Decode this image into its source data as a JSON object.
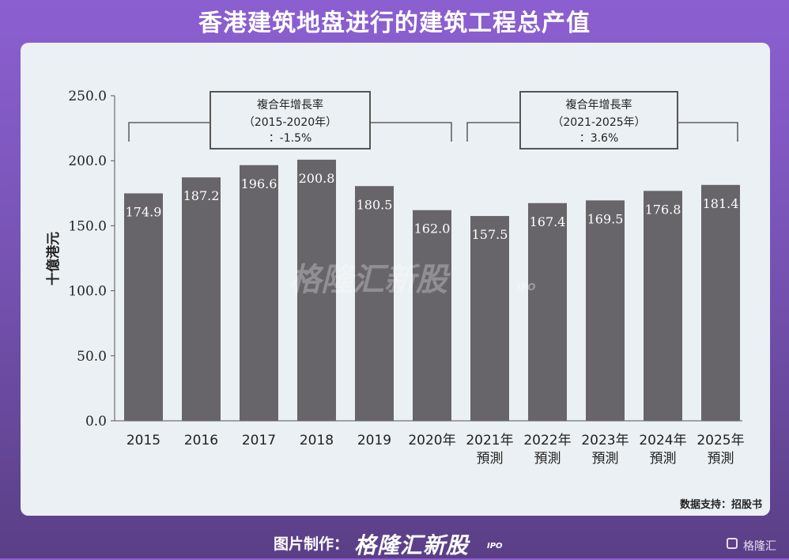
{
  "title": "香港建筑地盘进行的建筑工程总产值",
  "source": "数据支持：招股书",
  "watermark": {
    "brand": "格隆汇新股",
    "sub": "IPO"
  },
  "footer": {
    "label": "图片制作：",
    "brand": "格隆汇新股",
    "sub": "IPO",
    "corner_brand": "格隆汇"
  },
  "annotations": [
    {
      "line1": "複合年增長率",
      "line2": "（2015-2020年）",
      "line3": "：-1.5%"
    },
    {
      "line1": "複合年增長率",
      "line2": "（2021-2025年）",
      "line3": "：3.6%"
    }
  ],
  "chart_data": {
    "type": "bar",
    "categories": [
      [
        "2015"
      ],
      [
        "2016"
      ],
      [
        "2017"
      ],
      [
        "2018"
      ],
      [
        "2019"
      ],
      [
        "2020年"
      ],
      [
        "2021年",
        "預測"
      ],
      [
        "2022年",
        "預測"
      ],
      [
        "2023年",
        "預測"
      ],
      [
        "2024年",
        "預測"
      ],
      [
        "2025年",
        "預測"
      ]
    ],
    "values": [
      174.9,
      187.2,
      196.6,
      200.8,
      180.5,
      162.0,
      157.5,
      167.4,
      169.5,
      176.8,
      181.4
    ],
    "value_labels": [
      "174.9",
      "187.2",
      "196.6",
      "200.8",
      "180.5",
      "162.0",
      "157.5",
      "167.4",
      "169.5",
      "176.8",
      "181.4"
    ],
    "ylabel": "十億港元",
    "ylim": [
      0,
      250
    ],
    "yticks": [
      "0.0",
      "50.0",
      "100.0",
      "150.0",
      "200.0",
      "250.0"
    ],
    "grid": false,
    "bar_color": "#67656a"
  }
}
